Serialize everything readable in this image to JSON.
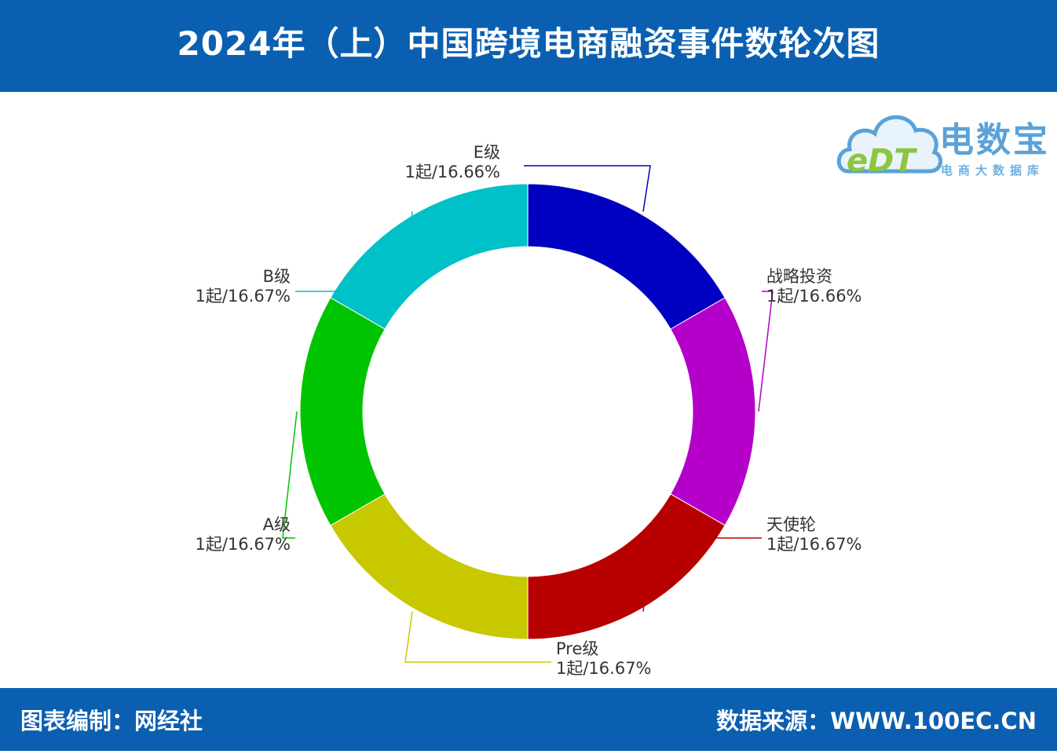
{
  "header": {
    "title": "2024年（上）中国跨境电商融资事件数轮次图"
  },
  "footer": {
    "left": "图表编制：网经社",
    "right": "数据来源：WWW.100EC.CN"
  },
  "logo": {
    "name": "电数宝",
    "badge": "eDT",
    "subtitle": "电商大数据库"
  },
  "colors": {
    "header_bg": "#0b5fb0",
    "strategic": "#b400c8",
    "angel": "#b80000",
    "pre": "#c8c800",
    "a": "#00c400",
    "b": "#00c0c8",
    "e": "#0000c0"
  },
  "chart_data": {
    "type": "pie",
    "variant": "donut",
    "title": "2024年（上）中国跨境电商融资事件数轮次图",
    "slices": [
      {
        "name": "战略投资",
        "count": 1,
        "count_label": "1起",
        "percent": 16.66,
        "percent_label": "16.66%",
        "color": "#b400c8"
      },
      {
        "name": "天使轮",
        "count": 1,
        "count_label": "1起",
        "percent": 16.67,
        "percent_label": "16.67%",
        "color": "#b80000"
      },
      {
        "name": "Pre级",
        "count": 1,
        "count_label": "1起",
        "percent": 16.67,
        "percent_label": "16.67%",
        "color": "#c8c800"
      },
      {
        "name": "A级",
        "count": 1,
        "count_label": "1起",
        "percent": 16.67,
        "percent_label": "16.67%",
        "color": "#00c400"
      },
      {
        "name": "B级",
        "count": 1,
        "count_label": "1起",
        "percent": 16.67,
        "percent_label": "16.67%",
        "color": "#00c0c8"
      },
      {
        "name": "E级",
        "count": 1,
        "count_label": "1起",
        "percent": 16.66,
        "percent_label": "16.66%",
        "color": "#0000c0"
      }
    ]
  }
}
